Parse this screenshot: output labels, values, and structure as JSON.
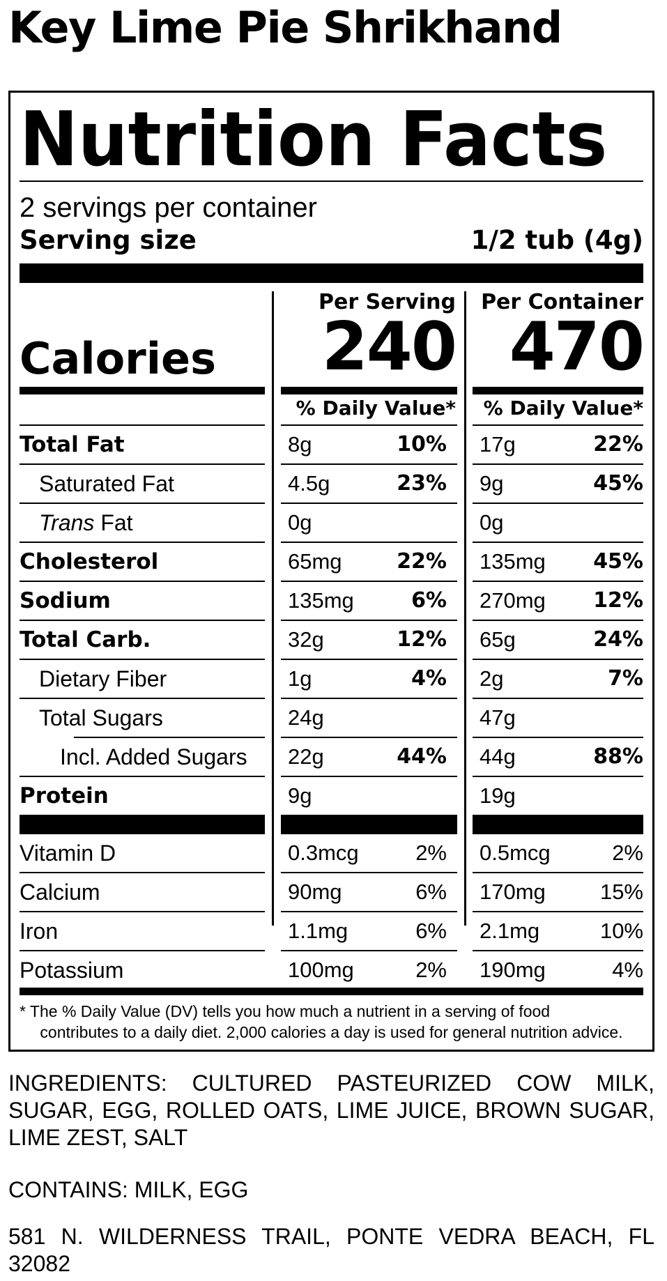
{
  "product": {
    "title": "Key Lime Pie Shrikhand"
  },
  "label": {
    "title": "Nutrition Facts",
    "servings_per_container": "2 servings per container",
    "serving_size_label": "Serving size",
    "serving_size_value": "1/2 tub (4g)",
    "col_per_serving": "Per Serving",
    "col_per_container": "Per Container",
    "calories_label": "Calories",
    "calories_per_serving": "240",
    "calories_per_container": "470",
    "dv_header": "% Daily Value*",
    "nutrients": [
      {
        "name": "Total Fat",
        "serving_amount": "8g",
        "serving_dv": "10%",
        "container_amount": "17g",
        "container_dv": "22%"
      },
      {
        "name": "Saturated Fat",
        "serving_amount": "4.5g",
        "serving_dv": "23%",
        "container_amount": "9g",
        "container_dv": "45%"
      },
      {
        "name_italic": "Trans",
        "name_rest": " Fat",
        "serving_amount": "0g",
        "serving_dv": "",
        "container_amount": "0g",
        "container_dv": ""
      },
      {
        "name": "Cholesterol",
        "serving_amount": "65mg",
        "serving_dv": "22%",
        "container_amount": "135mg",
        "container_dv": "45%"
      },
      {
        "name": "Sodium",
        "serving_amount": "135mg",
        "serving_dv": "6%",
        "container_amount": "270mg",
        "container_dv": "12%"
      },
      {
        "name": "Total Carb.",
        "serving_amount": "32g",
        "serving_dv": "12%",
        "container_amount": "65g",
        "container_dv": "24%"
      },
      {
        "name": "Dietary Fiber",
        "serving_amount": "1g",
        "serving_dv": "4%",
        "container_amount": "2g",
        "container_dv": "7%"
      },
      {
        "name": "Total Sugars",
        "serving_amount": "24g",
        "serving_dv": "",
        "container_amount": "47g",
        "container_dv": ""
      },
      {
        "name": "Incl. Added Sugars",
        "serving_amount": "22g",
        "serving_dv": "44%",
        "container_amount": "44g",
        "container_dv": "88%"
      },
      {
        "name": "Protein",
        "serving_amount": "9g",
        "serving_dv": "",
        "container_amount": "19g",
        "container_dv": ""
      }
    ],
    "vitamins": [
      {
        "name": "Vitamin D",
        "serving_amount": "0.3mcg",
        "serving_dv": "2%",
        "container_amount": "0.5mcg",
        "container_dv": "2%"
      },
      {
        "name": "Calcium",
        "serving_amount": "90mg",
        "serving_dv": "6%",
        "container_amount": "170mg",
        "container_dv": "15%"
      },
      {
        "name": "Iron",
        "serving_amount": "1.1mg",
        "serving_dv": "6%",
        "container_amount": "2.1mg",
        "container_dv": "10%"
      },
      {
        "name": "Potassium",
        "serving_amount": "100mg",
        "serving_dv": "2%",
        "container_amount": "190mg",
        "container_dv": "4%"
      }
    ],
    "footnote_line1": "* The % Daily Value (DV) tells you how much a nutrient in a serving of food",
    "footnote_line2": "contributes to a daily diet. 2,000 calories a day is used for general nutrition advice."
  },
  "ingredients": "INGREDIENTS: CULTURED PASTEURIZED COW MILK, SUGAR, EGG, ROLLED OATS, LIME JUICE, BROWN SUGAR, LIME ZEST, SALT",
  "contains": "CONTAINS: MILK, EGG",
  "address": "581 N. WILDERNESS TRAIL, PONTE VEDRA BEACH, FL 32082"
}
